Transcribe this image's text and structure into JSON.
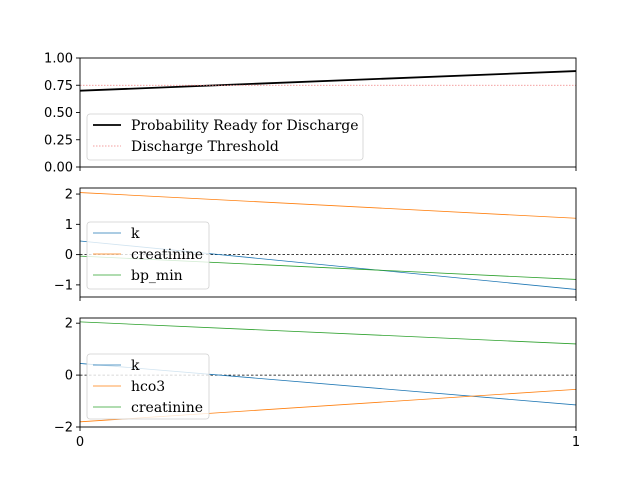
{
  "chart_data": [
    {
      "type": "line",
      "x": [
        0,
        1
      ],
      "ylim": [
        0,
        1
      ],
      "yticks": [
        "0.00",
        "0.25",
        "0.50",
        "0.75",
        "1.00"
      ],
      "xticks": [],
      "series": [
        {
          "name": "Probability Ready for Discharge",
          "values": [
            0.7,
            0.88
          ],
          "color": "#000000",
          "style": "solid-thick"
        },
        {
          "name": "Discharge Threshold",
          "values": [
            0.75,
            0.75
          ],
          "color": "#f08080",
          "style": "dotted"
        }
      ],
      "legend": "lower-left"
    },
    {
      "type": "line",
      "x": [
        0,
        1
      ],
      "ylim": [
        -1.4,
        2.2
      ],
      "yticks": [
        "−1",
        "0",
        "1",
        "2"
      ],
      "ytick_values": [
        -1,
        0,
        1,
        2
      ],
      "xticks": [],
      "reference_line": 0,
      "series": [
        {
          "name": "k",
          "values": [
            0.45,
            -1.15
          ],
          "color": "#1f77b4"
        },
        {
          "name": "creatinine",
          "values": [
            2.05,
            1.2
          ],
          "color": "#ff7f0e"
        },
        {
          "name": "bp_min",
          "values": [
            -0.05,
            -0.82
          ],
          "color": "#2ca02c"
        }
      ],
      "legend": "lower-left"
    },
    {
      "type": "line",
      "x": [
        0,
        1
      ],
      "ylim": [
        -2,
        2.2
      ],
      "yticks": [
        "−2",
        "0",
        "2"
      ],
      "ytick_values": [
        -2,
        0,
        2
      ],
      "xticks": [
        "0",
        "1"
      ],
      "reference_line": 0,
      "series": [
        {
          "name": "k",
          "values": [
            0.45,
            -1.15
          ],
          "color": "#1f77b4"
        },
        {
          "name": "hco3",
          "values": [
            -1.8,
            -0.55
          ],
          "color": "#ff7f0e"
        },
        {
          "name": "creatinine",
          "values": [
            2.05,
            1.2
          ],
          "color": "#2ca02c"
        }
      ],
      "legend": "center-left"
    }
  ]
}
